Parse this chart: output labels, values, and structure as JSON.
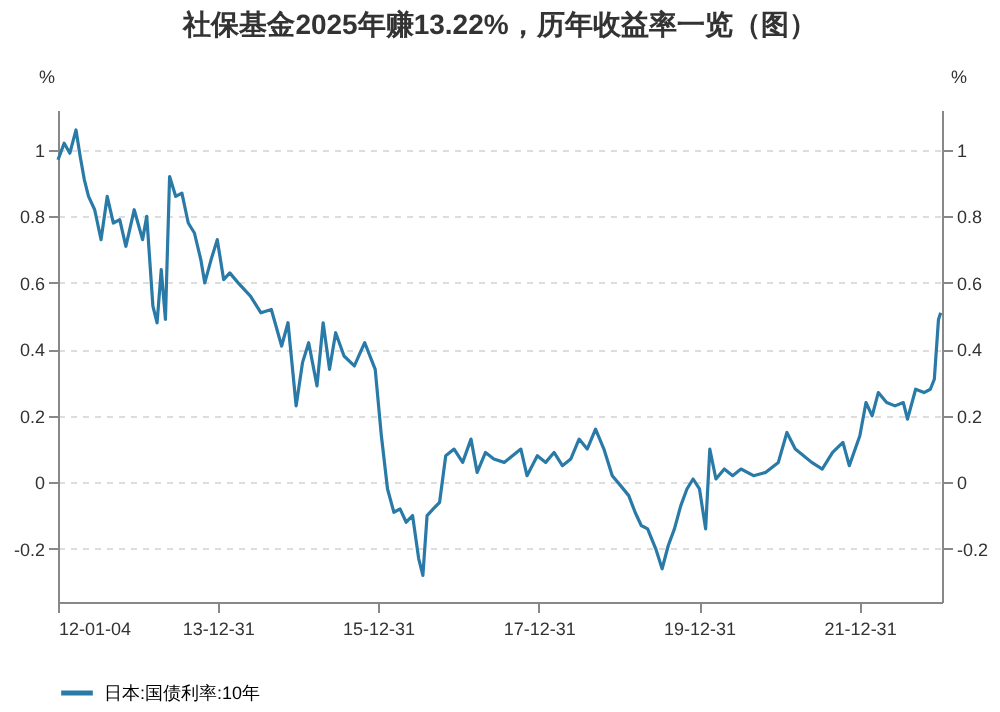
{
  "chart_data": {
    "type": "line",
    "title": "社保基金2025年赚13.22%，历年收益率一览（图）",
    "ylabel": "%",
    "y2label": "%",
    "x": [
      "2012-01-04",
      "2012-02-01",
      "2012-02-27",
      "2012-03-26",
      "2012-04-14",
      "2012-05-03",
      "2012-05-22",
      "2012-06-19",
      "2012-07-18",
      "2012-08-15",
      "2012-09-12",
      "2012-10-11",
      "2012-11-08",
      "2012-12-16",
      "2013-01-23",
      "2013-02-11",
      "2013-03-11",
      "2013-03-30",
      "2013-04-18",
      "2013-05-07",
      "2013-05-26",
      "2013-06-23",
      "2013-07-21",
      "2013-08-19",
      "2013-09-16",
      "2013-10-15",
      "2013-11-02",
      "2013-12-01",
      "2013-12-29",
      "2014-01-27",
      "2014-02-24",
      "2014-04-03",
      "2014-05-29",
      "2014-07-16",
      "2014-09-01",
      "2014-10-18",
      "2014-11-16",
      "2014-12-23",
      "2015-01-21",
      "2015-02-18",
      "2015-03-28",
      "2015-04-25",
      "2015-05-24",
      "2015-06-21",
      "2015-07-29",
      "2015-09-14",
      "2015-10-31",
      "2015-12-18",
      "2016-01-15",
      "2016-02-12",
      "2016-03-12",
      "2016-04-09",
      "2016-05-07",
      "2016-06-05",
      "2016-07-03",
      "2016-07-22",
      "2016-08-10",
      "2016-09-07",
      "2016-10-06",
      "2016-11-03",
      "2016-12-11",
      "2017-01-19",
      "2017-02-26",
      "2017-03-26",
      "2017-05-03",
      "2017-06-10",
      "2017-07-27",
      "2017-09-03",
      "2017-10-11",
      "2017-11-08",
      "2017-12-25",
      "2018-02-01",
      "2018-03-11",
      "2018-04-18",
      "2018-05-26",
      "2018-07-03",
      "2018-08-09",
      "2018-09-16",
      "2018-10-24",
      "2018-12-01",
      "2019-01-08",
      "2019-02-14",
      "2019-03-15",
      "2019-04-12",
      "2019-05-11",
      "2019-06-17",
      "2019-07-16",
      "2019-08-13",
      "2019-09-10",
      "2019-10-09",
      "2019-11-06",
      "2019-12-04",
      "2020-01-02",
      "2020-01-30",
      "2020-02-18",
      "2020-03-17",
      "2020-04-24",
      "2020-06-01",
      "2020-07-09",
      "2020-09-04",
      "2020-10-30",
      "2020-12-26",
      "2021-02-03",
      "2021-03-13",
      "2021-04-20",
      "2021-05-27",
      "2021-07-14",
      "2021-08-30",
      "2021-10-16",
      "2021-11-14",
      "2022-01-01",
      "2022-01-29",
      "2022-02-26",
      "2022-03-26",
      "2022-05-03",
      "2022-06-10",
      "2022-07-18",
      "2022-08-06",
      "2022-09-12",
      "2022-10-20",
      "2022-11-18",
      "2022-12-06",
      "2022-12-25",
      "2023-01-04"
    ],
    "series": [
      {
        "name": "日本:国债利率:10年",
        "color": "#2a7aa8",
        "values": [
          0.97,
          1.02,
          0.99,
          1.06,
          0.98,
          0.91,
          0.86,
          0.82,
          0.73,
          0.86,
          0.78,
          0.79,
          0.71,
          0.82,
          0.73,
          0.8,
          0.53,
          0.48,
          0.64,
          0.49,
          0.92,
          0.86,
          0.87,
          0.78,
          0.75,
          0.67,
          0.6,
          0.67,
          0.73,
          0.61,
          0.63,
          0.6,
          0.56,
          0.51,
          0.52,
          0.41,
          0.48,
          0.23,
          0.36,
          0.42,
          0.29,
          0.48,
          0.34,
          0.45,
          0.38,
          0.35,
          0.42,
          0.34,
          0.14,
          -0.02,
          -0.09,
          -0.08,
          -0.12,
          -0.1,
          -0.23,
          -0.28,
          -0.1,
          -0.08,
          -0.06,
          0.08,
          0.1,
          0.06,
          0.13,
          0.03,
          0.09,
          0.07,
          0.06,
          0.08,
          0.1,
          0.02,
          0.08,
          0.06,
          0.09,
          0.05,
          0.07,
          0.13,
          0.1,
          0.16,
          0.1,
          0.02,
          -0.01,
          -0.04,
          -0.09,
          -0.13,
          -0.14,
          -0.2,
          -0.26,
          -0.19,
          -0.14,
          -0.07,
          -0.02,
          0.01,
          -0.02,
          -0.14,
          0.1,
          0.01,
          0.04,
          0.02,
          0.04,
          0.02,
          0.03,
          0.06,
          0.15,
          0.1,
          0.08,
          0.06,
          0.04,
          0.09,
          0.12,
          0.05,
          0.14,
          0.24,
          0.2,
          0.27,
          0.24,
          0.23,
          0.24,
          0.19,
          0.28,
          0.27,
          0.28,
          0.31,
          0.49,
          0.51
        ]
      }
    ],
    "xlim": [
      "2012-01-04",
      "2023-01-10"
    ],
    "xticks": [
      {
        "value": "2012-01-04",
        "label": "12-01-04"
      },
      {
        "value": "2013-12-31",
        "label": "13-12-31"
      },
      {
        "value": "2015-12-31",
        "label": "15-12-31"
      },
      {
        "value": "2017-12-31",
        "label": "17-12-31"
      },
      {
        "value": "2019-12-31",
        "label": "19-12-31"
      },
      {
        "value": "2021-12-31",
        "label": "21-12-31"
      }
    ],
    "ylim": [
      -0.36,
      1.12
    ],
    "yticks": [
      -0.2,
      0,
      0.2,
      0.4,
      0.6,
      0.8,
      1
    ],
    "y2lim": [
      -0.36,
      1.12
    ],
    "y2ticks": [
      -0.2,
      0,
      0.2,
      0.4,
      0.6,
      0.8,
      1
    ],
    "grid": "y",
    "legend": "bottom",
    "line_style": "solid"
  }
}
